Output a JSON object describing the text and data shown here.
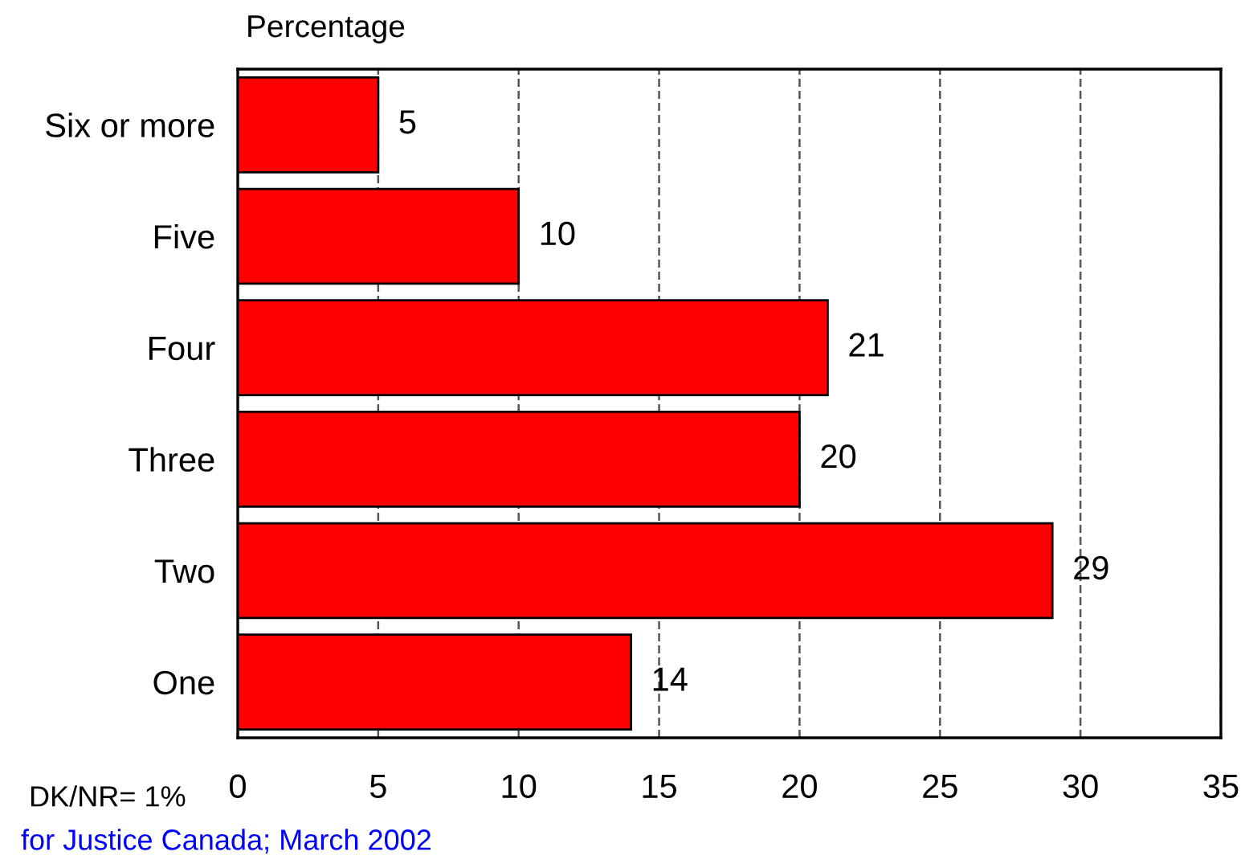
{
  "chart_data": {
    "type": "bar",
    "orientation": "horizontal",
    "xlabel": "Percentage",
    "categories": [
      "Six or more",
      "Five",
      "Four",
      "Three",
      "Two",
      "One"
    ],
    "values": [
      5,
      10,
      21,
      20,
      29,
      14
    ],
    "color": "#ff0000",
    "xlim": [
      0,
      35
    ],
    "xticks": [
      0,
      5,
      10,
      15,
      20,
      25,
      30,
      35
    ],
    "grid": "x",
    "data_labels": true,
    "annotations": [
      "DK/NR= 1%",
      "for Justice Canada; March 2002"
    ]
  }
}
